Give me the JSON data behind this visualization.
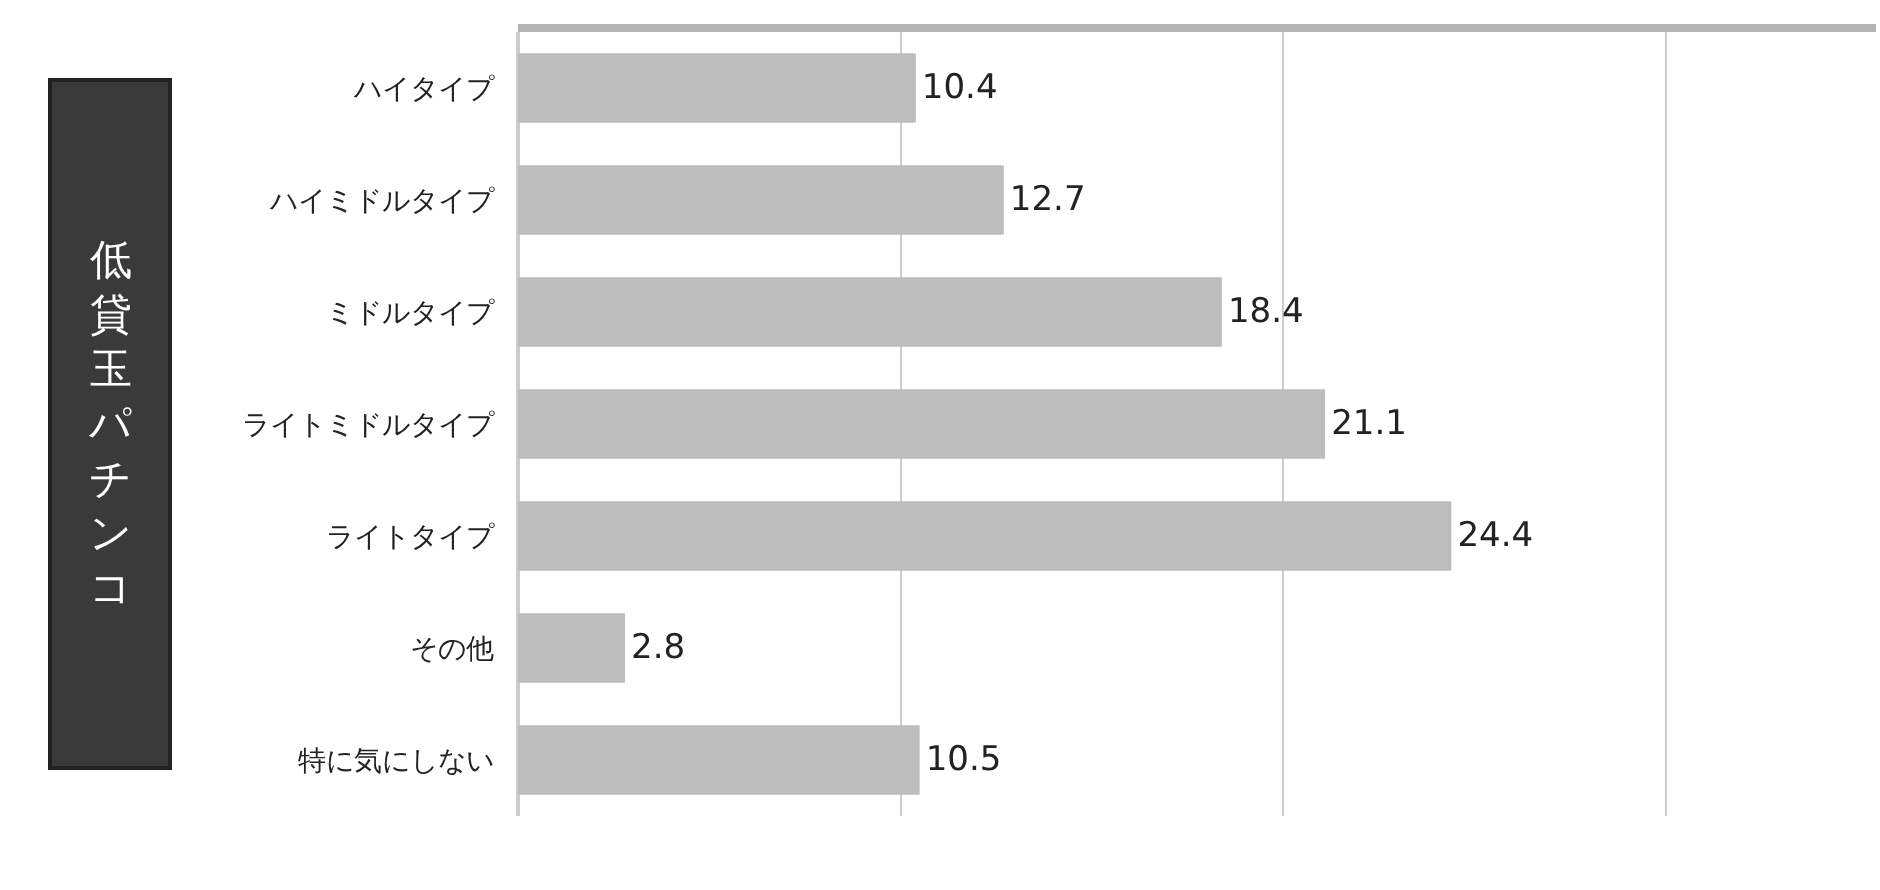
{
  "chart_data": {
    "type": "bar",
    "orientation": "horizontal",
    "categories": [
      "ハイタイプ",
      "ハイミドルタイプ",
      "ミドルタイプ",
      "ライトミドルタイプ",
      "ライトタイプ",
      "その他",
      "特に気にしない"
    ],
    "values": [
      10.4,
      12.7,
      18.4,
      21.1,
      24.4,
      2.8,
      10.5
    ],
    "color": "#bdbdbd",
    "xlim": [
      0,
      35.5
    ],
    "xticks": [
      {
        "value": 0,
        "label": null
      },
      {
        "value": 10,
        "label": null
      },
      {
        "value": 20,
        "label": null
      },
      {
        "value": 30,
        "label": null
      }
    ],
    "grid": "x",
    "data_labels": true,
    "tick_labels": "y",
    "annotations": [
      "低貸玉パチンコ"
    ]
  }
}
